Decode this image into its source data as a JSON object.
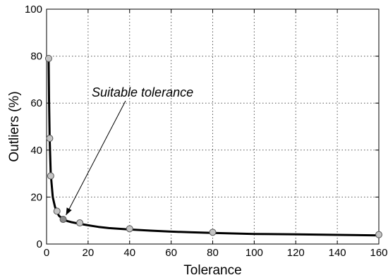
{
  "chart_data": {
    "type": "line",
    "title": "",
    "xlabel": "Tolerance",
    "ylabel": "Outliers (%)",
    "xlim": [
      0,
      160
    ],
    "ylim": [
      0,
      100
    ],
    "xticks": [
      0,
      20,
      40,
      60,
      80,
      100,
      120,
      140,
      160
    ],
    "yticks": [
      0,
      20,
      40,
      60,
      80,
      100
    ],
    "grid": true,
    "series": [
      {
        "name": "",
        "x": [
          1,
          1.2,
          1.5,
          2,
          3,
          4,
          5,
          6,
          8,
          10,
          12,
          16,
          20,
          25,
          30,
          40,
          50,
          60,
          70,
          80,
          100,
          120,
          140,
          160
        ],
        "y": [
          79,
          62,
          45,
          30,
          20,
          16,
          13.5,
          12,
          10.5,
          9.8,
          9.3,
          8.6,
          8,
          7.3,
          6.8,
          6.2,
          5.7,
          5.3,
          5,
          4.7,
          4.3,
          4.1,
          3.9,
          3.7
        ]
      }
    ],
    "markers": {
      "x": [
        1,
        1.5,
        2,
        5,
        8,
        16,
        40,
        80,
        160
      ],
      "y": [
        79,
        45,
        29,
        14,
        10.5,
        9,
        6.5,
        5,
        4
      ]
    },
    "highlighted_marker_index": 4,
    "annotations": [
      {
        "text": "Suitable tolerance",
        "target_x": 8,
        "target_y": 10.5
      }
    ],
    "colors": {
      "line": "#000000",
      "marker_fill": "#c4c4c4",
      "marker_highlight_fill": "#8a8a8a",
      "marker_stroke": "#555555"
    }
  }
}
